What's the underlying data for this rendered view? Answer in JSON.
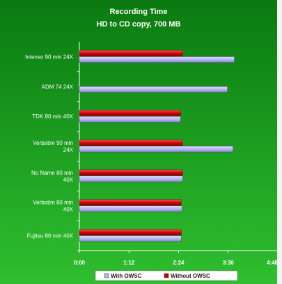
{
  "chart_data": {
    "type": "bar",
    "orientation": "horizontal",
    "title": "Recording Time",
    "subtitle": "HD to CD copy, 700 MB",
    "categories": [
      [
        "Intenso 90 min 24X"
      ],
      [
        "ADM 74 24X"
      ],
      [
        "TDK 80 min 40X"
      ],
      [
        "Verbatim 90 min",
        "24X"
      ],
      [
        "No Name 80 min",
        "40X"
      ],
      [
        "Verbatim 80 min",
        "40X"
      ],
      [
        "Fujitsu 80 min 40X"
      ]
    ],
    "series": [
      {
        "name": "Without OWSC",
        "color": "#cc0000",
        "values": [
          150,
          null,
          147,
          150,
          150,
          148,
          148
        ]
      },
      {
        "name": "With OWSC",
        "color": "#b3b3f0",
        "values": [
          225,
          215,
          147,
          223,
          150,
          149,
          148
        ]
      }
    ],
    "unit": "seconds",
    "xlim": [
      0,
      288
    ],
    "xticks": [
      0,
      72,
      144,
      216,
      288
    ],
    "xtick_labels": [
      "0:00",
      "1:12",
      "2:24",
      "3:36",
      "4:48"
    ],
    "legend": {
      "position": "bottom",
      "items": [
        {
          "label": "With OWSC",
          "color": "#b3b3f0"
        },
        {
          "label": "Without OWSC",
          "color": "#cc0000"
        }
      ]
    },
    "grid": false,
    "background": {
      "top": "#0a7a10",
      "bottom": "#2fbf2f"
    }
  }
}
